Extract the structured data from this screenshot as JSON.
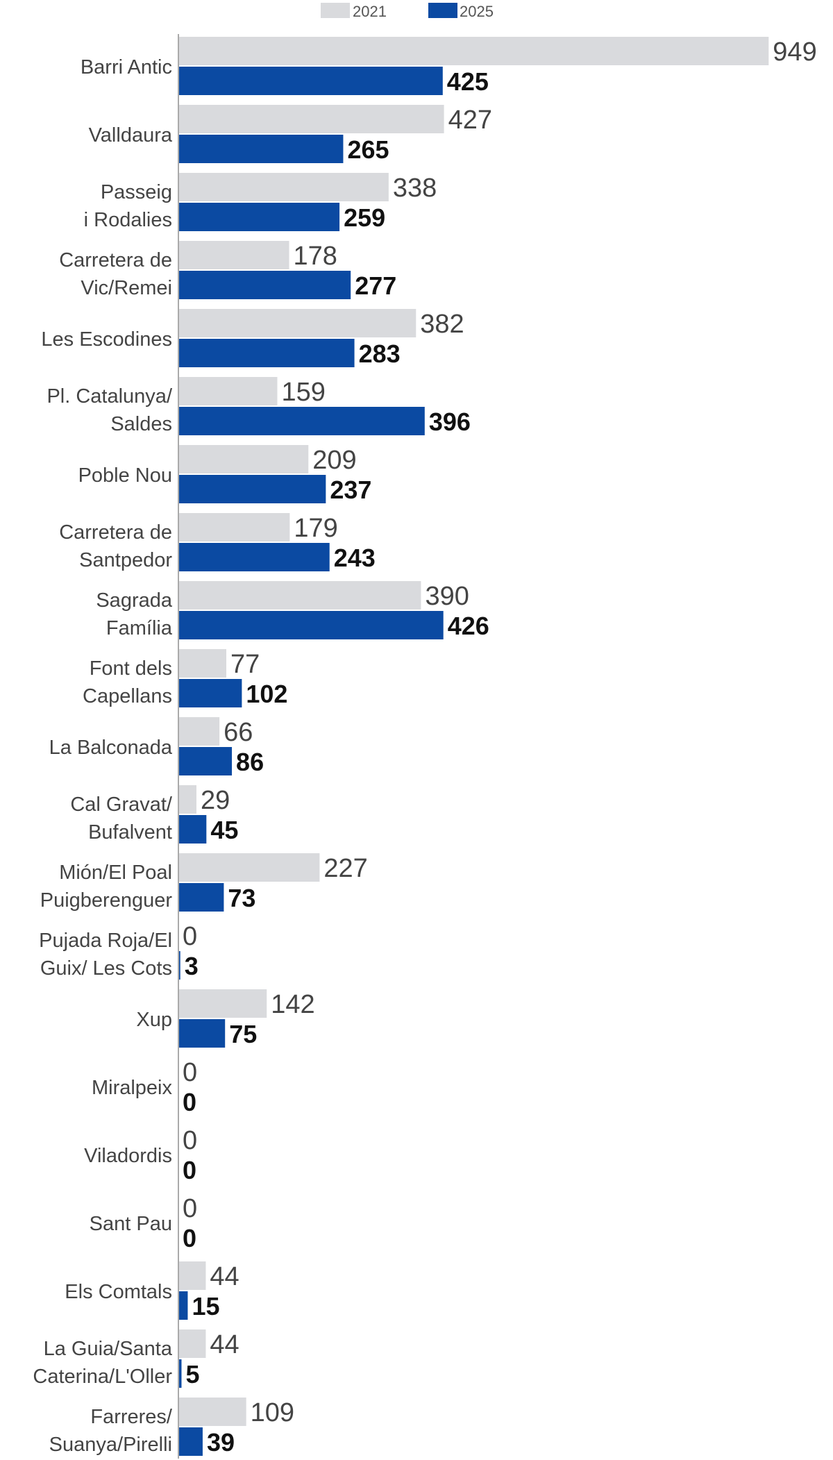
{
  "chart_data": {
    "type": "bar",
    "orientation": "horizontal",
    "title": "",
    "xlabel": "",
    "ylabel": "",
    "xlim": [
      0,
      1000
    ],
    "grid": false,
    "legend_position": "top",
    "categories": [
      [
        "Barri Antic"
      ],
      [
        "Valldaura"
      ],
      [
        "Passeig",
        "i Rodalies"
      ],
      [
        "Carretera de",
        "Vic/Remei"
      ],
      [
        "Les Escodines"
      ],
      [
        "Pl. Catalunya/",
        "Saldes"
      ],
      [
        "Poble Nou"
      ],
      [
        "Carretera de",
        "Santpedor"
      ],
      [
        "Sagrada",
        "Família"
      ],
      [
        "Font dels",
        "Capellans"
      ],
      [
        "La Balconada"
      ],
      [
        "Cal Gravat/",
        "Bufalvent"
      ],
      [
        "Mión/El Poal",
        "Puigberenguer"
      ],
      [
        "Pujada Roja/El",
        "Guix/ Les Cots"
      ],
      [
        "Xup"
      ],
      [
        "Miralpeix"
      ],
      [
        "Viladordis"
      ],
      [
        "Sant Pau"
      ],
      [
        "Els Comtals"
      ],
      [
        "La Guia/Santa",
        "Caterina/L'Oller"
      ],
      [
        "Farreres/",
        "Suanya/Pirelli"
      ]
    ],
    "series": [
      {
        "name": "2021",
        "color": "#d9dadd",
        "values": [
          949,
          427,
          338,
          178,
          382,
          159,
          209,
          179,
          390,
          77,
          66,
          29,
          227,
          0,
          142,
          0,
          0,
          0,
          44,
          44,
          109
        ]
      },
      {
        "name": "2025",
        "color": "#0b4aa2",
        "values": [
          425,
          265,
          259,
          277,
          283,
          396,
          237,
          243,
          426,
          102,
          86,
          45,
          73,
          3,
          75,
          0,
          0,
          0,
          15,
          5,
          39
        ]
      }
    ],
    "axis_color": "#aaaaaa"
  }
}
